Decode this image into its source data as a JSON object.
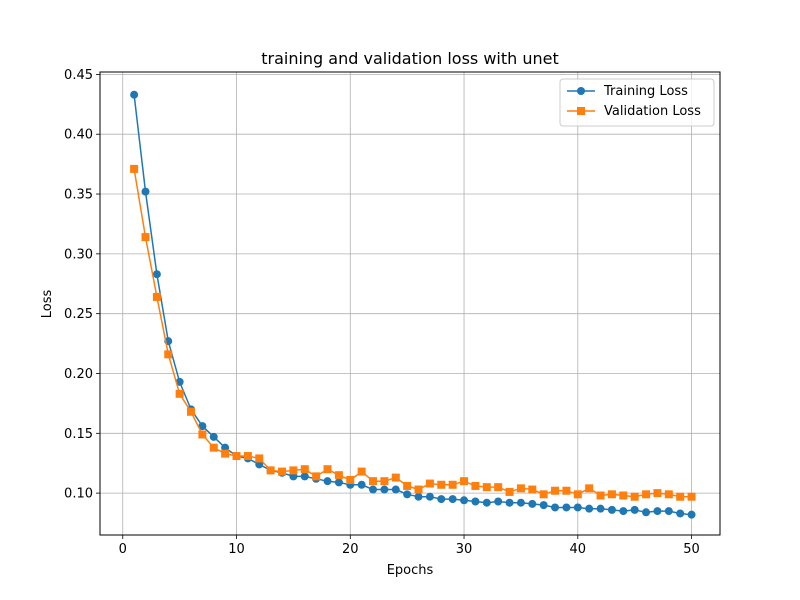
{
  "chart_data": {
    "type": "line",
    "title": "training and validation loss with unet",
    "xlabel": "Epochs",
    "ylabel": "Loss",
    "xlim": [
      -2,
      52.5
    ],
    "ylim": [
      0.065,
      0.452
    ],
    "xticks": [
      0,
      10,
      20,
      30,
      40,
      50
    ],
    "yticks": [
      0.1,
      0.15,
      0.2,
      0.25,
      0.3,
      0.35,
      0.4,
      0.45
    ],
    "xtick_labels": [
      "0",
      "10",
      "20",
      "30",
      "40",
      "50"
    ],
    "ytick_labels": [
      "0.10",
      "0.15",
      "0.20",
      "0.25",
      "0.30",
      "0.35",
      "0.40",
      "0.45"
    ],
    "grid": true,
    "legend_position": "upper-right",
    "x": [
      1,
      2,
      3,
      4,
      5,
      6,
      7,
      8,
      9,
      10,
      11,
      12,
      13,
      14,
      15,
      16,
      17,
      18,
      19,
      20,
      21,
      22,
      23,
      24,
      25,
      26,
      27,
      28,
      29,
      30,
      31,
      32,
      33,
      34,
      35,
      36,
      37,
      38,
      39,
      40,
      41,
      42,
      43,
      44,
      45,
      46,
      47,
      48,
      49,
      50
    ],
    "series": [
      {
        "name": "Training Loss",
        "color": "#1f77b4",
        "marker": "circle",
        "values": [
          0.433,
          0.352,
          0.283,
          0.227,
          0.193,
          0.17,
          0.156,
          0.147,
          0.138,
          0.131,
          0.129,
          0.124,
          0.119,
          0.117,
          0.114,
          0.114,
          0.112,
          0.11,
          0.109,
          0.107,
          0.107,
          0.103,
          0.103,
          0.103,
          0.099,
          0.097,
          0.097,
          0.095,
          0.095,
          0.094,
          0.093,
          0.092,
          0.093,
          0.092,
          0.092,
          0.091,
          0.09,
          0.088,
          0.088,
          0.088,
          0.087,
          0.087,
          0.086,
          0.085,
          0.086,
          0.084,
          0.085,
          0.085,
          0.083,
          0.082
        ]
      },
      {
        "name": "Validation Loss",
        "color": "#ff7f0e",
        "marker": "square",
        "values": [
          0.371,
          0.314,
          0.264,
          0.216,
          0.183,
          0.168,
          0.149,
          0.138,
          0.133,
          0.131,
          0.131,
          0.129,
          0.119,
          0.118,
          0.119,
          0.12,
          0.114,
          0.12,
          0.115,
          0.111,
          0.118,
          0.11,
          0.11,
          0.113,
          0.106,
          0.103,
          0.108,
          0.107,
          0.107,
          0.11,
          0.106,
          0.105,
          0.105,
          0.101,
          0.104,
          0.103,
          0.099,
          0.102,
          0.102,
          0.099,
          0.104,
          0.098,
          0.099,
          0.098,
          0.097,
          0.099,
          0.1,
          0.099,
          0.097,
          0.097
        ]
      }
    ]
  }
}
